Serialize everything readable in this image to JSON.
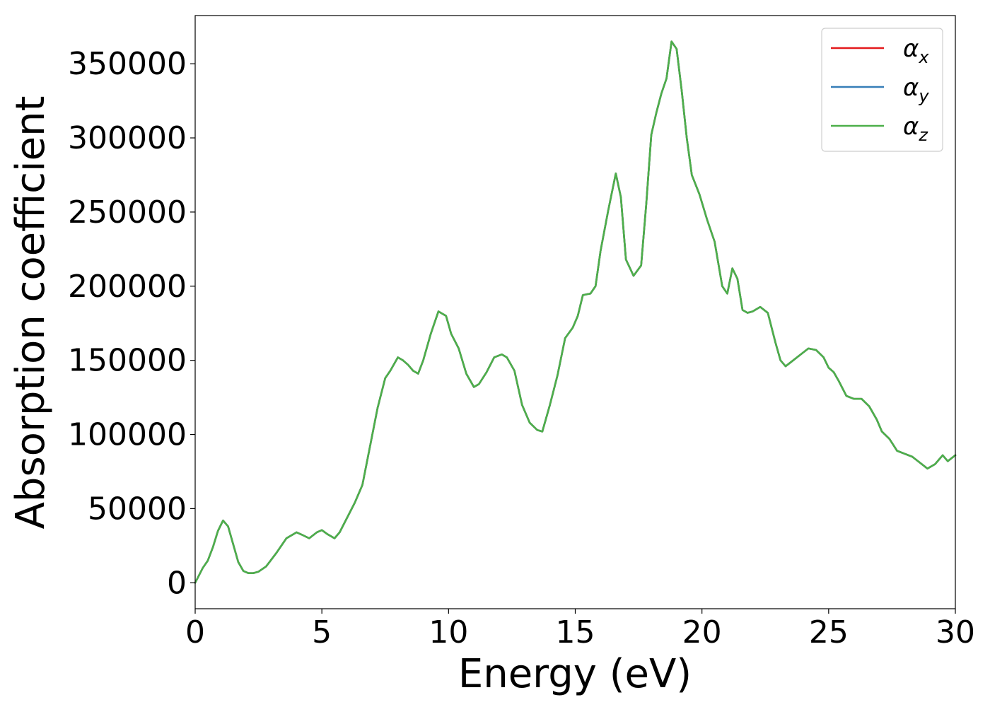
{
  "chart_data": {
    "type": "line",
    "xlabel": "Energy (eV)",
    "ylabel": "Absorption coefficient",
    "xlim": [
      0,
      30
    ],
    "ylim": [
      -17500,
      382500
    ],
    "xticks": [
      0,
      5,
      10,
      15,
      20,
      25,
      30
    ],
    "xtick_labels": [
      "0",
      "5",
      "10",
      "15",
      "20",
      "25",
      "30"
    ],
    "yticks": [
      0,
      50000,
      100000,
      150000,
      200000,
      250000,
      300000,
      350000
    ],
    "ytick_labels": [
      "0",
      "50000",
      "100000",
      "150000",
      "200000",
      "250000",
      "300000",
      "350000"
    ],
    "grid": false,
    "legend_position": "top-right",
    "x": [
      0,
      0.3,
      0.5,
      0.7,
      0.9,
      1.1,
      1.3,
      1.5,
      1.7,
      1.9,
      2.1,
      2.3,
      2.5,
      2.8,
      3.2,
      3.6,
      4.0,
      4.2,
      4.5,
      4.8,
      5.0,
      5.2,
      5.5,
      5.7,
      6.0,
      6.3,
      6.6,
      6.9,
      7.2,
      7.5,
      7.7,
      8.0,
      8.2,
      8.4,
      8.6,
      8.8,
      9.0,
      9.3,
      9.6,
      9.9,
      10.1,
      10.4,
      10.7,
      11.0,
      11.2,
      11.5,
      11.8,
      12.1,
      12.3,
      12.6,
      12.9,
      13.2,
      13.5,
      13.7,
      14.0,
      14.3,
      14.6,
      14.9,
      15.1,
      15.3,
      15.6,
      15.8,
      16.0,
      16.3,
      16.6,
      16.8,
      17.0,
      17.3,
      17.6,
      17.8,
      18.0,
      18.2,
      18.4,
      18.6,
      18.8,
      19.0,
      19.2,
      19.4,
      19.6,
      19.9,
      20.2,
      20.5,
      20.8,
      21.0,
      21.2,
      21.4,
      21.6,
      21.8,
      22.0,
      22.3,
      22.6,
      22.9,
      23.1,
      23.3,
      23.6,
      23.9,
      24.2,
      24.5,
      24.8,
      25.0,
      25.2,
      25.4,
      25.7,
      26.0,
      26.3,
      26.6,
      26.9,
      27.1,
      27.4,
      27.7,
      28.0,
      28.3,
      28.6,
      28.9,
      29.2,
      29.5,
      29.7,
      30.0
    ],
    "series": [
      {
        "name": "αx",
        "color": "#e41a1c",
        "values": [
          0,
          10000,
          15000,
          24000,
          35000,
          42000,
          38000,
          26000,
          14000,
          8000,
          6500,
          6500,
          7500,
          11000,
          20000,
          30000,
          34000,
          32500,
          30000,
          34000,
          35500,
          33000,
          30000,
          34000,
          44000,
          54000,
          66000,
          92000,
          118000,
          138000,
          143000,
          152000,
          150000,
          147000,
          143000,
          141000,
          150000,
          168000,
          183000,
          180000,
          168000,
          158000,
          141000,
          132000,
          134000,
          142000,
          152000,
          154000,
          152000,
          143000,
          120000,
          108000,
          103000,
          102000,
          120000,
          140000,
          165000,
          172000,
          180000,
          194000,
          195000,
          200000,
          224000,
          251000,
          276000,
          260000,
          218000,
          207000,
          214000,
          255000,
          302000,
          317000,
          330000,
          340000,
          365000,
          360000,
          332000,
          300000,
          275000,
          262000,
          245000,
          230000,
          200000,
          195000,
          212000,
          205000,
          184000,
          182000,
          183000,
          186000,
          182000,
          162000,
          150000,
          146000,
          150000,
          154000,
          158000,
          157000,
          152000,
          145000,
          142000,
          136000,
          126000,
          124000,
          124000,
          119000,
          110000,
          102000,
          97000,
          89000,
          87000,
          85000,
          81000,
          77000,
          80000,
          86000,
          82000,
          86000
        ]
      },
      {
        "name": "αy",
        "color": "#377eb8",
        "values": [
          0,
          10000,
          15000,
          24000,
          35000,
          42000,
          38000,
          26000,
          14000,
          8000,
          6500,
          6500,
          7500,
          11000,
          20000,
          30000,
          34000,
          32500,
          30000,
          34000,
          35500,
          33000,
          30000,
          34000,
          44000,
          54000,
          66000,
          92000,
          118000,
          138000,
          143000,
          152000,
          150000,
          147000,
          143000,
          141000,
          150000,
          168000,
          183000,
          180000,
          168000,
          158000,
          141000,
          132000,
          134000,
          142000,
          152000,
          154000,
          152000,
          143000,
          120000,
          108000,
          103000,
          102000,
          120000,
          140000,
          165000,
          172000,
          180000,
          194000,
          195000,
          200000,
          224000,
          251000,
          276000,
          260000,
          218000,
          207000,
          214000,
          255000,
          302000,
          317000,
          330000,
          340000,
          365000,
          360000,
          332000,
          300000,
          275000,
          262000,
          245000,
          230000,
          200000,
          195000,
          212000,
          205000,
          184000,
          182000,
          183000,
          186000,
          182000,
          162000,
          150000,
          146000,
          150000,
          154000,
          158000,
          157000,
          152000,
          145000,
          142000,
          136000,
          126000,
          124000,
          124000,
          119000,
          110000,
          102000,
          97000,
          89000,
          87000,
          85000,
          81000,
          77000,
          80000,
          86000,
          82000,
          86000
        ]
      },
      {
        "name": "αz",
        "color": "#4daf4a",
        "values": [
          0,
          10000,
          15000,
          24000,
          35000,
          42000,
          38000,
          26000,
          14000,
          8000,
          6500,
          6500,
          7500,
          11000,
          20000,
          30000,
          34000,
          32500,
          30000,
          34000,
          35500,
          33000,
          30000,
          34000,
          44000,
          54000,
          66000,
          92000,
          118000,
          138000,
          143000,
          152000,
          150000,
          147000,
          143000,
          141000,
          150000,
          168000,
          183000,
          180000,
          168000,
          158000,
          141000,
          132000,
          134000,
          142000,
          152000,
          154000,
          152000,
          143000,
          120000,
          108000,
          103000,
          102000,
          120000,
          140000,
          165000,
          172000,
          180000,
          194000,
          195000,
          200000,
          224000,
          251000,
          276000,
          260000,
          218000,
          207000,
          214000,
          255000,
          302000,
          317000,
          330000,
          340000,
          365000,
          360000,
          332000,
          300000,
          275000,
          262000,
          245000,
          230000,
          200000,
          195000,
          212000,
          205000,
          184000,
          182000,
          183000,
          186000,
          182000,
          162000,
          150000,
          146000,
          150000,
          154000,
          158000,
          157000,
          152000,
          145000,
          142000,
          136000,
          126000,
          124000,
          124000,
          119000,
          110000,
          102000,
          97000,
          89000,
          87000,
          85000,
          81000,
          77000,
          80000,
          86000,
          82000,
          86000
        ]
      }
    ],
    "legend": [
      {
        "symbol": "α",
        "subscript": "x",
        "color": "#e41a1c"
      },
      {
        "symbol": "α",
        "subscript": "y",
        "color": "#377eb8"
      },
      {
        "symbol": "α",
        "subscript": "z",
        "color": "#4daf4a"
      }
    ]
  }
}
